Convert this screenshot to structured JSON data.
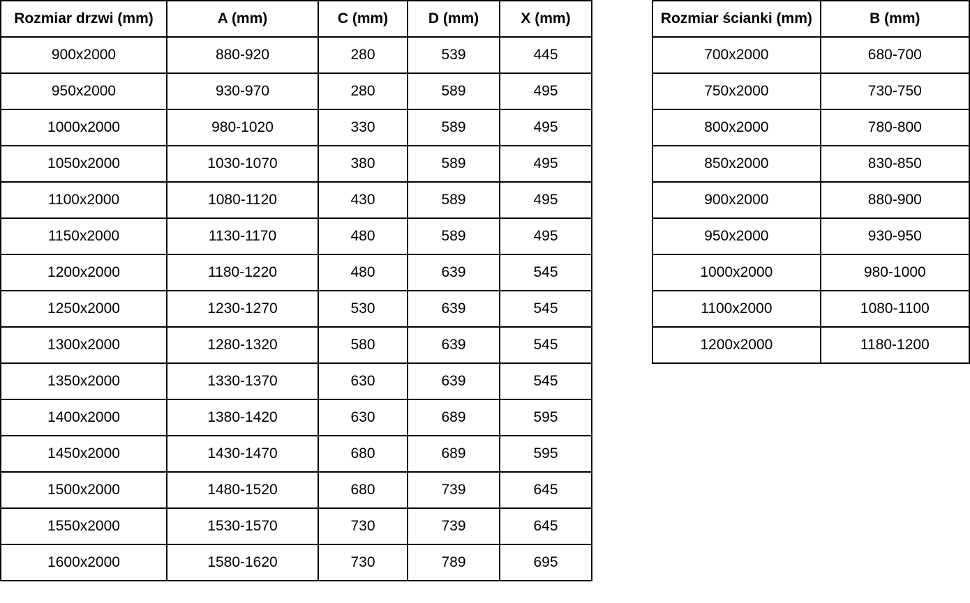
{
  "doors_table": {
    "headers": [
      "Rozmiar drzwi (mm)",
      "A (mm)",
      "C (mm)",
      "D (mm)",
      "X (mm)"
    ],
    "rows": [
      [
        "900x2000",
        "880-920",
        "280",
        "539",
        "445"
      ],
      [
        "950x2000",
        "930-970",
        "280",
        "589",
        "495"
      ],
      [
        "1000x2000",
        "980-1020",
        "330",
        "589",
        "495"
      ],
      [
        "1050x2000",
        "1030-1070",
        "380",
        "589",
        "495"
      ],
      [
        "1100x2000",
        "1080-1120",
        "430",
        "589",
        "495"
      ],
      [
        "1150x2000",
        "1130-1170",
        "480",
        "589",
        "495"
      ],
      [
        "1200x2000",
        "1180-1220",
        "480",
        "639",
        "545"
      ],
      [
        "1250x2000",
        "1230-1270",
        "530",
        "639",
        "545"
      ],
      [
        "1300x2000",
        "1280-1320",
        "580",
        "639",
        "545"
      ],
      [
        "1350x2000",
        "1330-1370",
        "630",
        "639",
        "545"
      ],
      [
        "1400x2000",
        "1380-1420",
        "630",
        "689",
        "595"
      ],
      [
        "1450x2000",
        "1430-1470",
        "680",
        "689",
        "595"
      ],
      [
        "1500x2000",
        "1480-1520",
        "680",
        "739",
        "645"
      ],
      [
        "1550x2000",
        "1530-1570",
        "730",
        "739",
        "645"
      ],
      [
        "1600x2000",
        "1580-1620",
        "730",
        "789",
        "695"
      ]
    ]
  },
  "walls_table": {
    "headers": [
      "Rozmiar ścianki (mm)",
      "B (mm)"
    ],
    "rows": [
      [
        "700x2000",
        "680-700"
      ],
      [
        "750x2000",
        "730-750"
      ],
      [
        "800x2000",
        "780-800"
      ],
      [
        "850x2000",
        "830-850"
      ],
      [
        "900x2000",
        "880-900"
      ],
      [
        "950x2000",
        "930-950"
      ],
      [
        "1000x2000",
        "980-1000"
      ],
      [
        "1100x2000",
        "1080-1100"
      ],
      [
        "1200x2000",
        "1180-1200"
      ]
    ]
  },
  "colors": {
    "border": "#000000",
    "text": "#000000",
    "background": "#ffffff"
  }
}
